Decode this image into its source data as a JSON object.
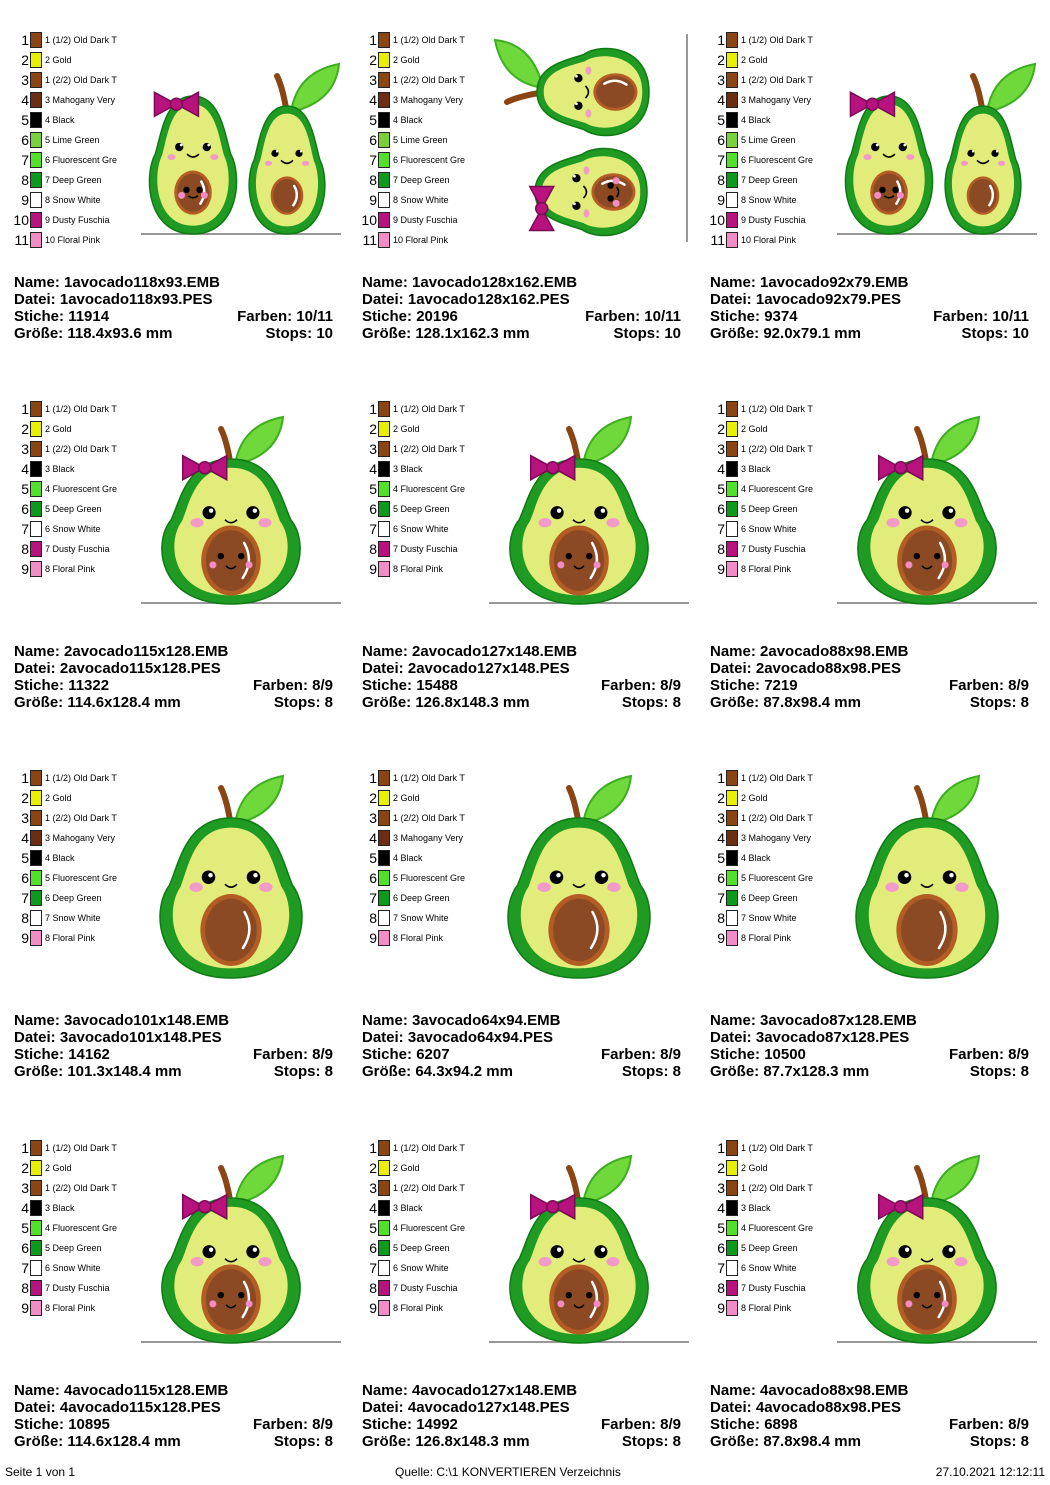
{
  "palettes": {
    "ten": [
      {
        "num": "1",
        "name": "1 (1/2) Old Dark T",
        "color": "#8a4513"
      },
      {
        "num": "2",
        "name": "2 Gold",
        "color": "#e8f000"
      },
      {
        "num": "3",
        "name": "1 (2/2) Old Dark T",
        "color": "#8a4513"
      },
      {
        "num": "4",
        "name": "3 Mahogany Very",
        "color": "#6b2e12"
      },
      {
        "num": "5",
        "name": "4 Black",
        "color": "#000000"
      },
      {
        "num": "6",
        "name": "5 Lime Green",
        "color": "#7ad03a"
      },
      {
        "num": "7",
        "name": "6 Fluorescent Gre",
        "color": "#52e02a"
      },
      {
        "num": "8",
        "name": "7 Deep Green",
        "color": "#0c9a1e"
      },
      {
        "num": "9",
        "name": "8 Snow White",
        "color": "#ffffff"
      },
      {
        "num": "10",
        "name": "9 Dusty Fuschia",
        "color": "#b8127f"
      },
      {
        "num": "11",
        "name": "10 Floral Pink",
        "color": "#f28cc5"
      }
    ],
    "bow": [
      {
        "num": "1",
        "name": "1 (1/2) Old Dark T",
        "color": "#8a4513"
      },
      {
        "num": "2",
        "name": "2 Gold",
        "color": "#e8f000"
      },
      {
        "num": "3",
        "name": "1 (2/2) Old Dark T",
        "color": "#8a4513"
      },
      {
        "num": "4",
        "name": "3 Black",
        "color": "#000000"
      },
      {
        "num": "5",
        "name": "4 Fluorescent Gre",
        "color": "#52e02a"
      },
      {
        "num": "6",
        "name": "5 Deep Green",
        "color": "#0c9a1e"
      },
      {
        "num": "7",
        "name": "6 Snow White",
        "color": "#ffffff"
      },
      {
        "num": "8",
        "name": "7 Dusty Fuschia",
        "color": "#b8127f"
      },
      {
        "num": "9",
        "name": "8 Floral Pink",
        "color": "#f28cc5"
      }
    ],
    "plain": [
      {
        "num": "1",
        "name": "1 (1/2) Old Dark T",
        "color": "#8a4513"
      },
      {
        "num": "2",
        "name": "2 Gold",
        "color": "#e8f000"
      },
      {
        "num": "3",
        "name": "1 (2/2) Old Dark T",
        "color": "#8a4513"
      },
      {
        "num": "4",
        "name": "3 Mahogany Very",
        "color": "#6b2e12"
      },
      {
        "num": "5",
        "name": "4 Black",
        "color": "#000000"
      },
      {
        "num": "6",
        "name": "5 Fluorescent Gre",
        "color": "#52e02a"
      },
      {
        "num": "7",
        "name": "6 Deep Green",
        "color": "#0c9a1e"
      },
      {
        "num": "8",
        "name": "7 Snow White",
        "color": "#ffffff"
      },
      {
        "num": "9",
        "name": "8 Floral Pink",
        "color": "#f28cc5"
      }
    ]
  },
  "labels": {
    "name": "Name:",
    "file": "Datei:",
    "stitches": "Stiche:",
    "colors": "Farben:",
    "size": "Größe:",
    "stops": "Stops:"
  },
  "designs": [
    {
      "palette": "ten",
      "art": "pair",
      "name": "1avocado118x93.EMB",
      "file": "1avocado118x93.PES",
      "stitches": "11914",
      "colors": "10/11",
      "size": "118.4x93.6 mm",
      "stops": "10"
    },
    {
      "palette": "ten",
      "art": "stack",
      "name": "1avocado128x162.EMB",
      "file": "1avocado128x162.PES",
      "stitches": "20196",
      "colors": "10/11",
      "size": "128.1x162.3 mm",
      "stops": "10"
    },
    {
      "palette": "ten",
      "art": "pair",
      "name": "1avocado92x79.EMB",
      "file": "1avocado92x79.PES",
      "stitches": "9374",
      "colors": "10/11",
      "size": "92.0x79.1 mm",
      "stops": "10"
    },
    {
      "palette": "bow",
      "art": "bowseed",
      "name": "2avocado115x128.EMB",
      "file": "2avocado115x128.PES",
      "stitches": "11322",
      "colors": "8/9",
      "size": "114.6x128.4 mm",
      "stops": "8"
    },
    {
      "palette": "bow",
      "art": "bowseed",
      "name": "2avocado127x148.EMB",
      "file": "2avocado127x148.PES",
      "stitches": "15488",
      "colors": "8/9",
      "size": "126.8x148.3 mm",
      "stops": "8"
    },
    {
      "palette": "bow",
      "art": "bowseed",
      "name": "2avocado88x98.EMB",
      "file": "2avocado88x98.PES",
      "stitches": "7219",
      "colors": "8/9",
      "size": "87.8x98.4 mm",
      "stops": "8"
    },
    {
      "palette": "plain",
      "art": "plain",
      "name": "3avocado101x148.EMB",
      "file": "3avocado101x148.PES",
      "stitches": "14162",
      "colors": "8/9",
      "size": "101.3x148.4 mm",
      "stops": "8"
    },
    {
      "palette": "plain",
      "art": "plain",
      "name": "3avocado64x94.EMB",
      "file": "3avocado64x94.PES",
      "stitches": "6207",
      "colors": "8/9",
      "size": "64.3x94.2 mm",
      "stops": "8"
    },
    {
      "palette": "plain",
      "art": "plain",
      "name": "3avocado87x128.EMB",
      "file": "3avocado87x128.PES",
      "stitches": "10500",
      "colors": "8/9",
      "size": "87.7x128.3 mm",
      "stops": "8"
    },
    {
      "palette": "bow",
      "art": "bowseed",
      "name": "4avocado115x128.EMB",
      "file": "4avocado115x128.PES",
      "stitches": "10895",
      "colors": "8/9",
      "size": "114.6x128.4 mm",
      "stops": "8"
    },
    {
      "palette": "bow",
      "art": "bowseed",
      "name": "4avocado127x148.EMB",
      "file": "4avocado127x148.PES",
      "stitches": "14992",
      "colors": "8/9",
      "size": "126.8x148.3 mm",
      "stops": "8"
    },
    {
      "palette": "bow",
      "art": "bowseed",
      "name": "4avocado88x98.EMB",
      "file": "4avocado88x98.PES",
      "stitches": "6898",
      "colors": "8/9",
      "size": "87.8x98.4 mm",
      "stops": "8"
    }
  ],
  "footer": {
    "page": "Seite 1 von 1",
    "source": "Quelle: C:\\1 KONVERTIEREN Verzeichnis",
    "timestamp": "27.10.2021 12:12:11"
  }
}
